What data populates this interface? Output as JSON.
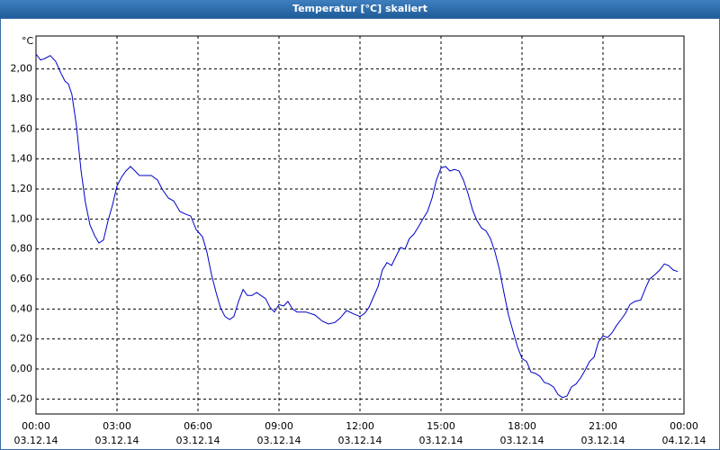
{
  "chart_data": {
    "type": "line",
    "title": "Temperatur [°C] skaliert",
    "y_label": "°C",
    "color": "#0000c8",
    "grid": true,
    "x": [
      0,
      0.17,
      0.33,
      0.53,
      0.73,
      0.93,
      1.07,
      1.2,
      1.33,
      1.5,
      1.67,
      1.83,
      2,
      2.17,
      2.33,
      2.5,
      2.67,
      2.83,
      3,
      3.17,
      3.33,
      3.5,
      3.67,
      3.83,
      4.07,
      4.27,
      4.5,
      4.67,
      4.9,
      5.1,
      5.33,
      5.57,
      5.73,
      5.93,
      6.17,
      6.33,
      6.5,
      6.67,
      6.83,
      7,
      7.17,
      7.33,
      7.5,
      7.67,
      7.83,
      8,
      8.17,
      8.33,
      8.5,
      8.67,
      8.83,
      9,
      9.17,
      9.33,
      9.5,
      9.67,
      10,
      10.33,
      10.6,
      10.83,
      11.07,
      11.27,
      11.5,
      11.73,
      12,
      12.17,
      12.33,
      12.5,
      12.67,
      12.83,
      13,
      13.17,
      13.33,
      13.5,
      13.67,
      13.83,
      14,
      14.17,
      14.33,
      14.5,
      14.67,
      14.83,
      15,
      15.17,
      15.33,
      15.5,
      15.67,
      15.83,
      16,
      16.17,
      16.33,
      16.5,
      16.67,
      16.83,
      17,
      17.17,
      17.33,
      17.5,
      17.67,
      17.83,
      18,
      18.17,
      18.33,
      18.5,
      18.67,
      18.83,
      19,
      19.17,
      19.33,
      19.5,
      19.67,
      19.83,
      20,
      20.17,
      20.33,
      20.5,
      20.67,
      20.83,
      21,
      21.17,
      21.33,
      21.5,
      21.67,
      21.83,
      22,
      22.17,
      22.4,
      22.6,
      22.73,
      22.93,
      23.1,
      23.27,
      23.43,
      23.6,
      23.77
    ],
    "values": [
      2.1,
      2.06,
      2.07,
      2.09,
      2.05,
      1.97,
      1.92,
      1.9,
      1.83,
      1.62,
      1.32,
      1.11,
      0.96,
      0.89,
      0.84,
      0.86,
      0.99,
      1.09,
      1.22,
      1.28,
      1.32,
      1.35,
      1.32,
      1.29,
      1.29,
      1.29,
      1.26,
      1.2,
      1.14,
      1.12,
      1.05,
      1.03,
      1.02,
      0.93,
      0.88,
      0.78,
      0.63,
      0.51,
      0.41,
      0.35,
      0.33,
      0.35,
      0.45,
      0.53,
      0.49,
      0.49,
      0.51,
      0.49,
      0.47,
      0.41,
      0.38,
      0.43,
      0.42,
      0.45,
      0.4,
      0.38,
      0.38,
      0.36,
      0.32,
      0.3,
      0.31,
      0.34,
      0.39,
      0.37,
      0.35,
      0.37,
      0.41,
      0.48,
      0.55,
      0.66,
      0.71,
      0.69,
      0.75,
      0.81,
      0.8,
      0.87,
      0.9,
      0.95,
      1.0,
      1.05,
      1.14,
      1.26,
      1.34,
      1.35,
      1.32,
      1.33,
      1.32,
      1.26,
      1.17,
      1.06,
      0.99,
      0.94,
      0.92,
      0.87,
      0.78,
      0.66,
      0.51,
      0.36,
      0.25,
      0.15,
      0.07,
      0.05,
      -0.02,
      -0.03,
      -0.05,
      -0.09,
      -0.1,
      -0.12,
      -0.17,
      -0.19,
      -0.18,
      -0.12,
      -0.1,
      -0.06,
      -0.01,
      0.05,
      0.08,
      0.18,
      0.22,
      0.21,
      0.24,
      0.29,
      0.33,
      0.37,
      0.43,
      0.45,
      0.46,
      0.55,
      0.6,
      0.63,
      0.66,
      0.7,
      0.69,
      0.66,
      0.65
    ],
    "xlim": [
      0,
      24
    ],
    "xticks": [
      {
        "value": 0,
        "label": "00:00\n03.12.14"
      },
      {
        "value": 3,
        "label": "03:00\n03.12.14"
      },
      {
        "value": 6,
        "label": "06:00\n03.12.14"
      },
      {
        "value": 9,
        "label": "09:00\n03.12.14"
      },
      {
        "value": 12,
        "label": "12:00\n03.12.14"
      },
      {
        "value": 15,
        "label": "15:00\n03.12.14"
      },
      {
        "value": 18,
        "label": "18:00\n03.12.14"
      },
      {
        "value": 21,
        "label": "21:00\n03.12.14"
      },
      {
        "value": 24,
        "label": "00:00\n04.12.14"
      }
    ],
    "ylim": [
      -0.3,
      2.22
    ],
    "yticks": [
      {
        "value": -0.2,
        "label": "-0,20"
      },
      {
        "value": 0,
        "label": "0,00"
      },
      {
        "value": 0.2,
        "label": "0,20"
      },
      {
        "value": 0.4,
        "label": "0,40"
      },
      {
        "value": 0.6,
        "label": "0,60"
      },
      {
        "value": 0.8,
        "label": "0,80"
      },
      {
        "value": 1.0,
        "label": "1,00"
      },
      {
        "value": 1.2,
        "label": "1,20"
      },
      {
        "value": 1.4,
        "label": "1,40"
      },
      {
        "value": 1.6,
        "label": "1,60"
      },
      {
        "value": 1.8,
        "label": "1,80"
      },
      {
        "value": 2.0,
        "label": "2,00"
      }
    ]
  }
}
